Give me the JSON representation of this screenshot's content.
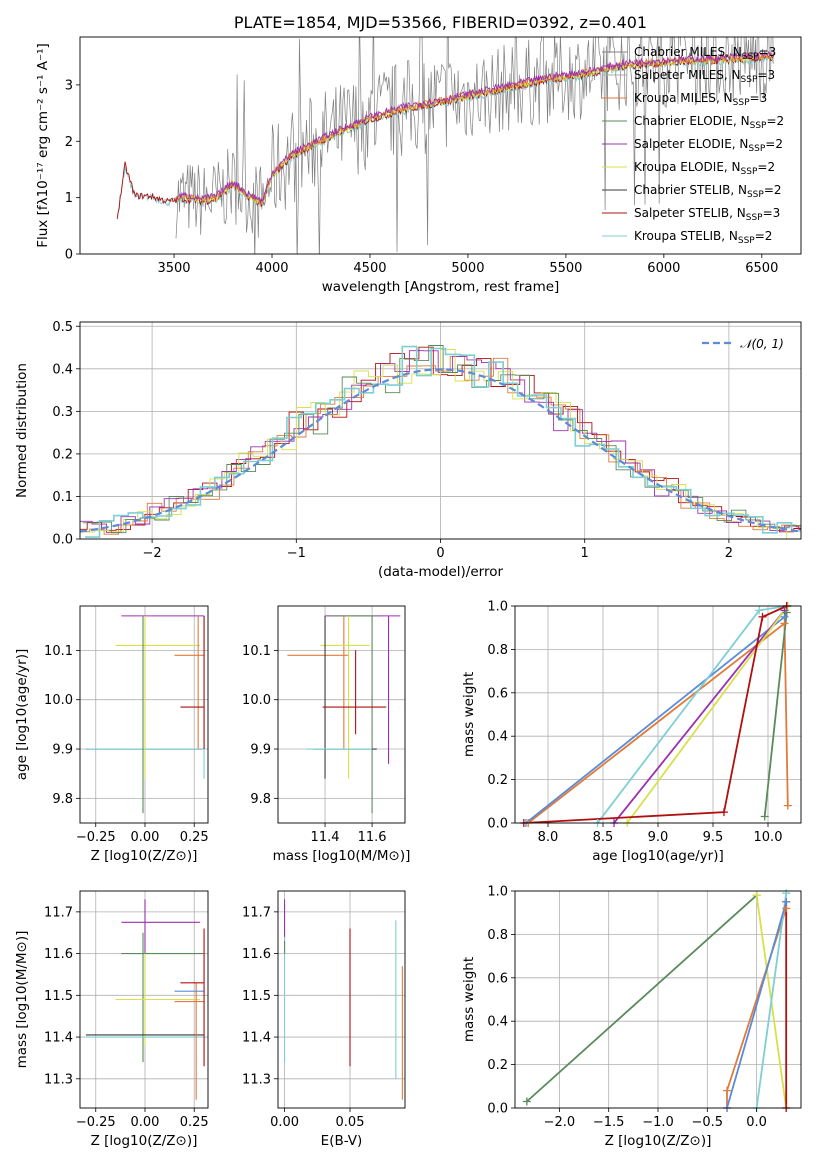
{
  "colors": {
    "chabrier_miles": "#808080",
    "salpeter_miles": "#a8a8a8",
    "kroupa_miles": "#e07b39",
    "chabrier_elodie": "#5a8a5a",
    "salpeter_elodie": "#9b30b0",
    "kroupa_elodie": "#d8e04a",
    "chabrier_stelib": "#3a3a3a",
    "salpeter_stelib": "#b01010",
    "kroupa_stelib": "#7ecfd4",
    "gaussian": "#5b8bd9",
    "grid": "#b0b0b0"
  },
  "chart_data": [
    {
      "id": "spectrum",
      "type": "line",
      "title": "PLATE=1854, MJD=53566, FIBERID=0392, z=0.401",
      "xlabel": "wavelength [Angstrom, rest frame]",
      "ylabel": "Flux [fλ10⁻¹⁷ erg cm⁻² s⁻¹ A⁻¹]",
      "xlim": [
        3020,
        6700
      ],
      "ylim": [
        0,
        3.85
      ],
      "xticks": [
        3500,
        4000,
        4500,
        5000,
        5500,
        6000,
        6500
      ],
      "yticks": [
        0,
        1,
        2,
        3
      ],
      "grid": false,
      "legend_position": "top-right",
      "legend": [
        "Chabrier MILES, N_SSP=3",
        "Salpeter MILES, N_SSP=3",
        "Kroupa MILES, N_SSP=3",
        "Chabrier ELODIE, N_SSP=2",
        "Salpeter ELODIE, N_SSP=2",
        "Kroupa ELODIE, N_SSP=2",
        "Chabrier STELIB, N_SSP=2",
        "Salpeter STELIB, N_SSP=3",
        "Kroupa STELIB, N_SSP=2"
      ],
      "model_shape": [
        [
          3210,
          0.65
        ],
        [
          3250,
          1.6
        ],
        [
          3300,
          1.05
        ],
        [
          3380,
          1.05
        ],
        [
          3470,
          0.95
        ],
        [
          3550,
          1.0
        ],
        [
          3650,
          0.95
        ],
        [
          3720,
          1.0
        ],
        [
          3800,
          1.25
        ],
        [
          3870,
          1.05
        ],
        [
          3950,
          0.9
        ],
        [
          4000,
          1.4
        ],
        [
          4100,
          1.75
        ],
        [
          4300,
          2.1
        ],
        [
          4500,
          2.4
        ],
        [
          4700,
          2.6
        ],
        [
          4860,
          2.7
        ],
        [
          5000,
          2.8
        ],
        [
          5200,
          2.95
        ],
        [
          5400,
          3.1
        ],
        [
          5600,
          3.2
        ],
        [
          5800,
          3.35
        ],
        [
          6000,
          3.4
        ],
        [
          6300,
          3.45
        ],
        [
          6560,
          3.5
        ]
      ]
    },
    {
      "id": "residuals",
      "type": "line",
      "xlabel": "(data-model)/error",
      "ylabel": "Normed distribution",
      "xlim": [
        -2.5,
        2.5
      ],
      "ylim": [
        0,
        0.51
      ],
      "xticks": [
        -2,
        -1,
        0,
        1,
        2
      ],
      "yticks": [
        0.0,
        0.1,
        0.2,
        0.3,
        0.4,
        0.5
      ],
      "grid": true,
      "legend_position": "top-right",
      "legend": [
        "N(0,1)"
      ]
    },
    {
      "id": "z_vs_age",
      "type": "scatter",
      "xlabel": "Z [log10(Z/Z⊙)]",
      "ylabel": "age [log10(age/yr)]",
      "xlim": [
        -0.33,
        0.32
      ],
      "ylim": [
        9.75,
        10.19
      ],
      "xticks": [
        -0.25,
        0.0,
        0.25
      ],
      "yticks": [
        9.8,
        9.9,
        10.0,
        10.1
      ],
      "grid": true
    },
    {
      "id": "mass_vs_age",
      "type": "scatter",
      "xlabel": "mass [log10(M/M⊙)]",
      "xlim": [
        11.2,
        11.74
      ],
      "ylim": [
        9.75,
        10.19
      ],
      "xticks": [
        11.4,
        11.6
      ],
      "yticks": [
        9.8,
        9.9,
        10.0,
        10.1
      ],
      "grid": true
    },
    {
      "id": "age_vs_weight",
      "type": "line",
      "xlabel": "age [log10(age/yr)]",
      "ylabel": "mass weight",
      "xlim": [
        7.7,
        10.3
      ],
      "ylim": [
        0,
        1
      ],
      "xticks": [
        8.0,
        8.5,
        9.0,
        9.5,
        10.0
      ],
      "yticks": [
        0.0,
        0.2,
        0.4,
        0.6,
        0.8,
        1.0
      ],
      "grid": true,
      "series": [
        {
          "color": "kroupa_miles",
          "points": [
            [
              7.82,
              0.0
            ],
            [
              10.15,
              0.92
            ],
            [
              10.18,
              0.08
            ]
          ]
        },
        {
          "color": "gaussian",
          "points": [
            [
              7.8,
              0.0
            ],
            [
              10.15,
              0.95
            ],
            [
              10.18,
              1.0
            ]
          ]
        },
        {
          "color": "kroupa_stelib",
          "points": [
            [
              8.45,
              0.0
            ],
            [
              9.92,
              0.98
            ],
            [
              10.18,
              1.0
            ]
          ]
        },
        {
          "color": "salpeter_elodie",
          "points": [
            [
              8.6,
              0.0
            ],
            [
              10.15,
              0.98
            ],
            [
              10.17,
              1.0
            ]
          ]
        },
        {
          "color": "kroupa_elodie",
          "points": [
            [
              8.72,
              0.0
            ],
            [
              10.18,
              1.0
            ]
          ]
        },
        {
          "color": "salpeter_stelib",
          "points": [
            [
              7.78,
              0.0
            ],
            [
              9.6,
              0.05
            ],
            [
              9.95,
              0.95
            ],
            [
              10.17,
              1.0
            ]
          ]
        },
        {
          "color": "chabrier_elodie",
          "points": [
            [
              9.97,
              0.03
            ],
            [
              10.17,
              0.97
            ]
          ]
        }
      ]
    },
    {
      "id": "z_vs_mass",
      "type": "scatter",
      "xlabel": "Z [log10(Z/Z⊙)]",
      "ylabel": "mass [log10(M/M⊙)]",
      "xlim": [
        -0.33,
        0.32
      ],
      "ylim": [
        11.23,
        11.75
      ],
      "xticks": [
        -0.25,
        0.0,
        0.25
      ],
      "yticks": [
        11.3,
        11.4,
        11.5,
        11.6,
        11.7
      ],
      "grid": true
    },
    {
      "id": "ebv_vs_mass",
      "type": "scatter",
      "xlabel": "E(B-V)",
      "xlim": [
        -0.005,
        0.092
      ],
      "ylim": [
        11.23,
        11.75
      ],
      "xticks": [
        0.0,
        0.05
      ],
      "yticks": [
        11.3,
        11.4,
        11.5,
        11.6,
        11.7
      ],
      "grid": true,
      "points": [
        {
          "color": "salpeter_elodie",
          "x": 0.0,
          "y0": 11.63,
          "y1": 11.73
        },
        {
          "color": "kroupa_stelib",
          "x": 0.0,
          "y0": 11.34,
          "y1": 11.64
        },
        {
          "color": "chabrier_elodie",
          "x": 0.0,
          "y0": 11.6,
          "y1": 11.63
        },
        {
          "color": "salpeter_stelib",
          "x": 0.05,
          "y0": 11.33,
          "y1": 11.66
        },
        {
          "color": "kroupa_stelib",
          "x": 0.085,
          "y0": 11.3,
          "y1": 11.68
        },
        {
          "color": "kroupa_miles",
          "x": 0.09,
          "y0": 11.25,
          "y1": 11.57
        }
      ]
    },
    {
      "id": "z_vs_weight",
      "type": "line",
      "xlabel": "Z [log10(Z/Z⊙)]",
      "ylabel": "mass weight",
      "xlim": [
        -2.45,
        0.45
      ],
      "ylim": [
        0,
        1
      ],
      "xticks": [
        -2.0,
        -1.5,
        -1.0,
        -0.5,
        0.0
      ],
      "yticks": [
        0.0,
        0.2,
        0.4,
        0.6,
        0.8,
        1.0
      ],
      "grid": true,
      "series": [
        {
          "color": "chabrier_elodie",
          "points": [
            [
              -2.33,
              0.03
            ],
            [
              0.0,
              0.98
            ]
          ]
        },
        {
          "color": "kroupa_elodie",
          "points": [
            [
              0.0,
              0.98
            ],
            [
              0.3,
              0.0
            ]
          ]
        },
        {
          "color": "kroupa_miles",
          "points": [
            [
              -0.3,
              0.0
            ],
            [
              -0.3,
              0.08
            ],
            [
              0.3,
              0.92
            ]
          ]
        },
        {
          "color": "kroupa_stelib",
          "points": [
            [
              0.0,
              0.0
            ],
            [
              0.3,
              0.99
            ]
          ]
        },
        {
          "color": "salpeter_stelib",
          "points": [
            [
              0.3,
              0.0
            ],
            [
              0.3,
              0.95
            ]
          ]
        },
        {
          "color": "gaussian",
          "points": [
            [
              -0.3,
              0.0
            ],
            [
              0.3,
              0.95
            ]
          ]
        }
      ]
    }
  ]
}
